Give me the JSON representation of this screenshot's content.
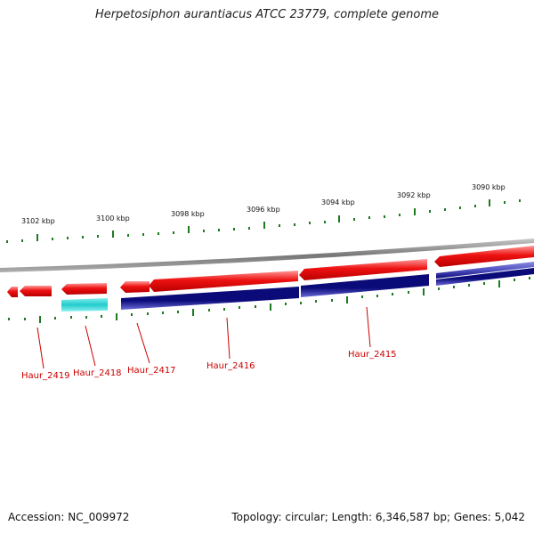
{
  "title": "Herpetosiphon aurantiacus ATCC 23779, complete genome",
  "footer": {
    "accession": "Accession: NC_009972",
    "summary": "Topology: circular; Length: 6,346,587 bp; Genes: 5,042"
  },
  "colors": {
    "forward_gene": "#ee1111",
    "reverse_gene": "#0a0a78",
    "rna_gene": "#22cccc",
    "backbone": "#888888",
    "ticks": "#1e7a1e",
    "label": "#cc0000"
  },
  "scale_labels": [
    "3102 kbp",
    "3100 kbp",
    "3098 kbp",
    "3096 kbp",
    "3094 kbp",
    "3092 kbp",
    "3090 kbp"
  ],
  "gene_labels": [
    "Haur_2419",
    "Haur_2418",
    "Haur_2417",
    "Haur_2416",
    "Haur_2415"
  ]
}
